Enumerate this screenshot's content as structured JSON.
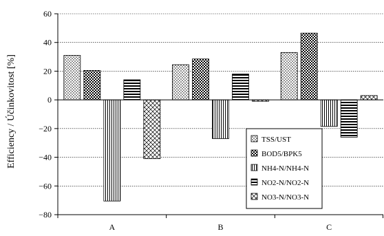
{
  "chart_data": {
    "type": "bar",
    "categories": [
      "A",
      "B",
      "C"
    ],
    "ylabel": "Efficiency / Účinkovitost [%]",
    "xlabel": "",
    "ylim": [
      -80,
      60
    ],
    "yticks": [
      60,
      40,
      20,
      0,
      -20,
      -40,
      -60,
      -80
    ],
    "ytick_labels": [
      "60",
      "40",
      "20",
      "0",
      "−20",
      "−40",
      "−60",
      "−80"
    ],
    "grid": true,
    "legend_position": "right-middle",
    "series": [
      {
        "name": "TSS/UST",
        "pattern": "dots",
        "values": [
          31,
          24.5,
          33
        ]
      },
      {
        "name": "BOD5/BPK5",
        "pattern": "checker",
        "values": [
          20.5,
          28.5,
          46.5
        ]
      },
      {
        "name": "NH4-N/NH4-N",
        "pattern": "vertical",
        "values": [
          -70.5,
          -27,
          -18.5
        ]
      },
      {
        "name": "NO2-N/NO2-N",
        "pattern": "horizontal",
        "values": [
          14,
          18,
          -26
        ]
      },
      {
        "name": "NO3-N/NO3-N",
        "pattern": "crosshatch",
        "values": [
          -41,
          -1,
          3
        ]
      }
    ]
  }
}
